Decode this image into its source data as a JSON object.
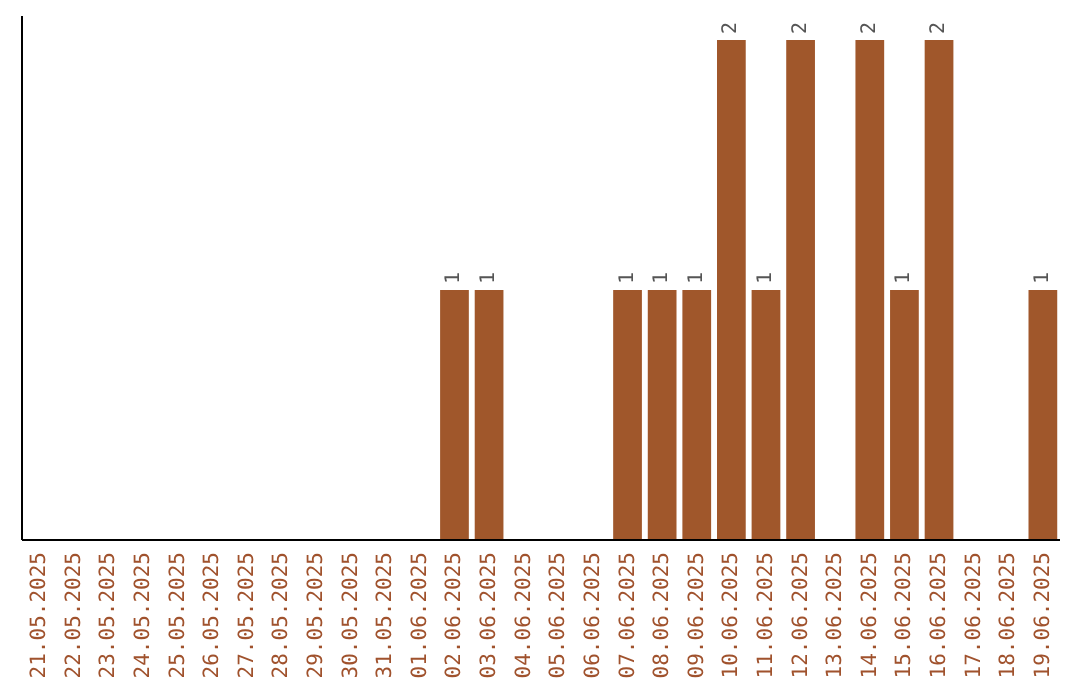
{
  "chart_data": {
    "type": "bar",
    "categories": [
      "21.05.2025",
      "22.05.2025",
      "23.05.2025",
      "24.05.2025",
      "25.05.2025",
      "26.05.2025",
      "27.05.2025",
      "28.05.2025",
      "29.05.2025",
      "30.05.2025",
      "31.05.2025",
      "01.06.2025",
      "02.06.2025",
      "03.06.2025",
      "04.06.2025",
      "05.06.2025",
      "06.06.2025",
      "07.06.2025",
      "08.06.2025",
      "09.06.2025",
      "10.06.2025",
      "11.06.2025",
      "12.06.2025",
      "13.06.2025",
      "14.06.2025",
      "15.06.2025",
      "16.06.2025",
      "17.06.2025",
      "18.06.2025",
      "19.06.2025"
    ],
    "values": [
      null,
      null,
      null,
      null,
      null,
      null,
      null,
      null,
      null,
      null,
      null,
      null,
      1,
      1,
      null,
      null,
      null,
      1,
      1,
      1,
      2,
      1,
      2,
      null,
      2,
      1,
      2,
      null,
      null,
      1
    ],
    "value_labels": [
      null,
      null,
      null,
      null,
      null,
      null,
      null,
      null,
      null,
      null,
      null,
      null,
      "1",
      "1",
      null,
      null,
      null,
      "1",
      "1",
      "1",
      "2",
      "1",
      "2",
      null,
      "2",
      "1",
      "2",
      null,
      null,
      "1"
    ],
    "color": "#a0572b"
  }
}
